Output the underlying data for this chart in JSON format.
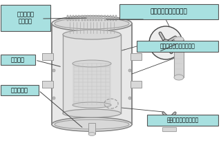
{
  "background_color": "#ffffff",
  "labels": {
    "top_left_1": "原子炉容器",
    "top_left_2": "蓋用管台",
    "mid_left": "炉心そう",
    "bot_left": "炉内計装筒",
    "top_right": "制御棒クラスタ案内管",
    "mid_right": "バッフルフォーマボルト",
    "bot_right": "バレルフォーマボルト"
  },
  "label_box_color": "#a8e0e0",
  "label_box_edge": "#555555",
  "line_color": "#444444",
  "vessel_edge": "#888888",
  "draw_color": "#999999",
  "light_fill": "#e8e8e8",
  "mid_fill": "#d8d8d8",
  "dark_fill": "#c8c8c8"
}
